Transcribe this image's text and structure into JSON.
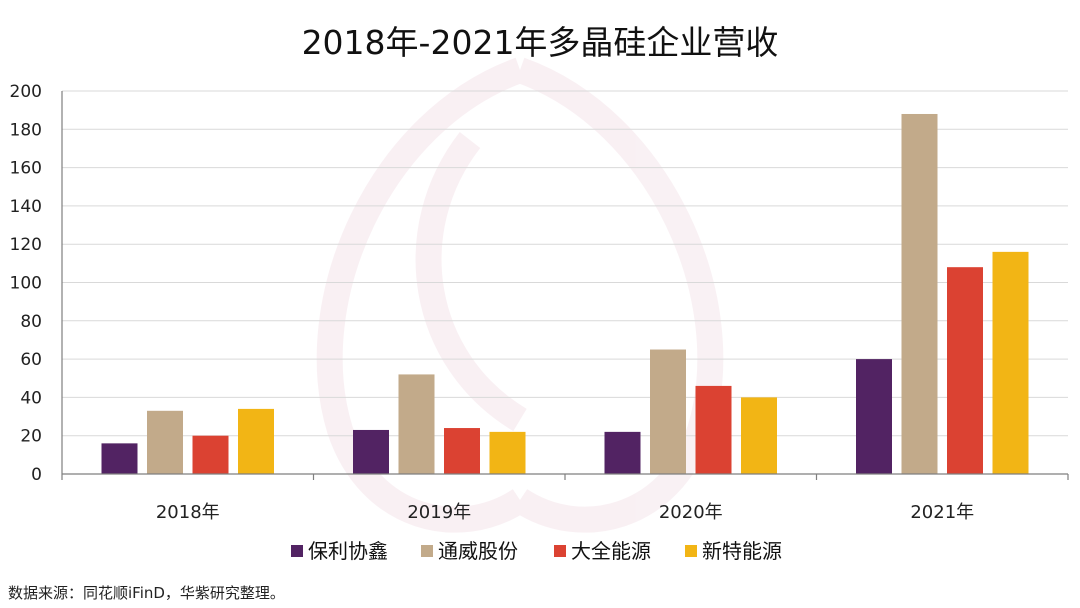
{
  "chart_data": {
    "type": "bar",
    "title": "2018年-2021年多晶硅企业营收",
    "categories": [
      "2018年",
      "2019年",
      "2020年",
      "2021年"
    ],
    "series": [
      {
        "name": "保利协鑫",
        "color": "#522363",
        "values": [
          16,
          23,
          22,
          60
        ]
      },
      {
        "name": "通威股份",
        "color": "#c2aa8a",
        "values": [
          33,
          52,
          65,
          188
        ]
      },
      {
        "name": "大全能源",
        "color": "#db4232",
        "values": [
          20,
          24,
          46,
          108
        ]
      },
      {
        "name": "新特能源",
        "color": "#f2b515",
        "values": [
          34,
          22,
          40,
          116
        ]
      }
    ],
    "yticks": [
      0,
      20,
      40,
      60,
      80,
      100,
      120,
      140,
      160,
      180,
      200
    ],
    "ylim": [
      0,
      200
    ],
    "grid": true,
    "legend_position": "bottom",
    "xlabel": "",
    "ylabel": ""
  },
  "source_note": "数据来源：同花顺iFinD，华紫研究整理。"
}
